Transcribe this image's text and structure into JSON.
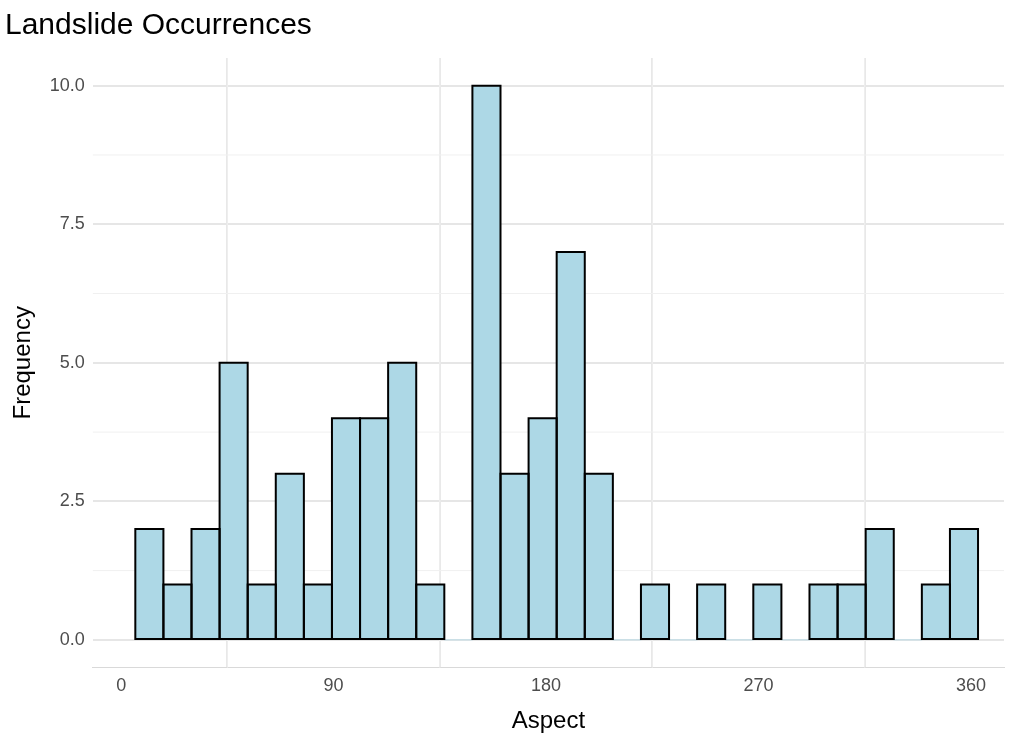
{
  "chart_data": {
    "type": "histogram",
    "title": "Landslide Occurrences",
    "xlabel": "Aspect",
    "ylabel": "Frequency",
    "bins": [
      6,
      17.9,
      29.8,
      41.7,
      53.6,
      65.5,
      77.4,
      89.3,
      101.2,
      113.1,
      125,
      136.9,
      148.8,
      160.7,
      172.6,
      184.5,
      196.4,
      208.3,
      220.2,
      232.1,
      244,
      255.9,
      267.8,
      279.7,
      291.6,
      303.5,
      315.4,
      327.3,
      339.2,
      351.1,
      363
    ],
    "values": [
      2,
      1,
      2,
      5,
      1,
      3,
      1,
      4,
      4,
      5,
      1,
      0,
      10,
      3,
      4,
      7,
      3,
      0,
      1,
      0,
      1,
      0,
      1,
      0,
      1,
      1,
      2,
      0,
      1,
      2
    ],
    "color": "#add8e6",
    "xlim": [
      -12,
      374
    ],
    "ylim": [
      -0.5,
      10.5
    ],
    "xticks": [
      0,
      90,
      180,
      270,
      360
    ],
    "yticks": [
      {
        "value": 0,
        "label": "0.0"
      },
      {
        "value": 2.5,
        "label": "2.5"
      },
      {
        "value": 5,
        "label": "5.0"
      },
      {
        "value": 7.5,
        "label": "7.5"
      },
      {
        "value": 10,
        "label": "10.0"
      }
    ],
    "grid": true
  }
}
